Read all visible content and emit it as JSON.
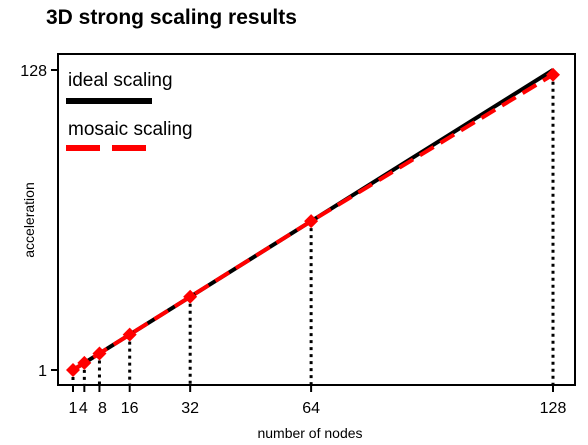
{
  "chart_data": {
    "type": "line",
    "title": "3D strong scaling results",
    "xlabel": "number of nodes",
    "ylabel": "acceleration",
    "xlim": [
      1,
      128
    ],
    "ylim": [
      1,
      128
    ],
    "x_ticks": [
      1,
      4,
      8,
      16,
      32,
      64,
      128
    ],
    "x_tick_labels": [
      "1",
      "4",
      "8",
      "16",
      "32",
      "64",
      "128"
    ],
    "y_ticks": [
      1,
      128
    ],
    "y_tick_labels": [
      "1",
      "128"
    ],
    "x": [
      1,
      4,
      8,
      16,
      32,
      64,
      128
    ],
    "series": [
      {
        "name": "ideal scaling",
        "values": [
          1,
          4,
          8,
          16,
          32,
          64,
          128
        ],
        "color": "#000000",
        "style": "solid"
      },
      {
        "name": "mosaic scaling",
        "values": [
          1,
          4,
          8,
          16,
          32,
          64,
          126
        ],
        "color": "#ff0000",
        "style": "dashed",
        "marker": "diamond"
      }
    ],
    "drop_lines": "dotted vertical lines from each data point to the x-axis",
    "legend_position": "top-left",
    "grid": false
  }
}
